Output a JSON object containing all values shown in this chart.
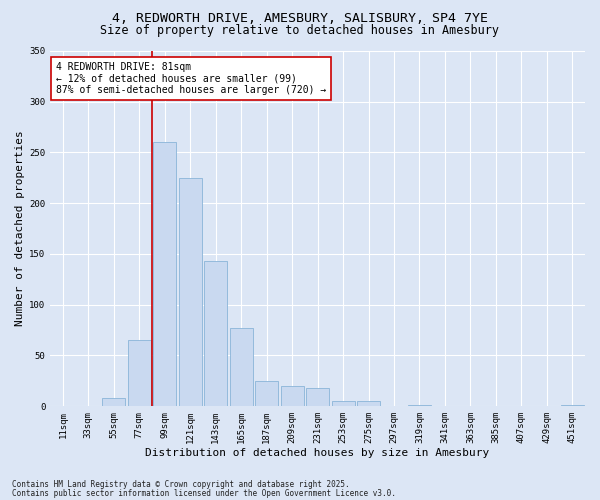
{
  "title_line1": "4, REDWORTH DRIVE, AMESBURY, SALISBURY, SP4 7YE",
  "title_line2": "Size of property relative to detached houses in Amesbury",
  "xlabel": "Distribution of detached houses by size in Amesbury",
  "ylabel": "Number of detached properties",
  "footnote1": "Contains HM Land Registry data © Crown copyright and database right 2025.",
  "footnote2": "Contains public sector information licensed under the Open Government Licence v3.0.",
  "bar_labels": [
    "11sqm",
    "33sqm",
    "55sqm",
    "77sqm",
    "99sqm",
    "121sqm",
    "143sqm",
    "165sqm",
    "187sqm",
    "209sqm",
    "231sqm",
    "253sqm",
    "275sqm",
    "297sqm",
    "319sqm",
    "341sqm",
    "363sqm",
    "385sqm",
    "407sqm",
    "429sqm",
    "451sqm"
  ],
  "bar_values": [
    0,
    0,
    8,
    65,
    260,
    225,
    143,
    77,
    25,
    20,
    18,
    5,
    5,
    0,
    1,
    0,
    0,
    0,
    0,
    0,
    1
  ],
  "bar_color": "#c9d9f0",
  "bar_edgecolor": "#8ab4d8",
  "vline_x_index": 4,
  "vline_color": "#cc0000",
  "annotation_text": "4 REDWORTH DRIVE: 81sqm\n← 12% of detached houses are smaller (99)\n87% of semi-detached houses are larger (720) →",
  "annotation_box_facecolor": "#ffffff",
  "annotation_box_edgecolor": "#cc0000",
  "ylim": [
    0,
    350
  ],
  "yticks": [
    0,
    50,
    100,
    150,
    200,
    250,
    300,
    350
  ],
  "bg_color": "#dce6f5",
  "axes_bg_color": "#dce6f5",
  "grid_color": "#ffffff",
  "title_fontsize": 9.5,
  "subtitle_fontsize": 8.5,
  "axis_label_fontsize": 8,
  "tick_fontsize": 6.5,
  "annotation_fontsize": 7,
  "footnote_fontsize": 5.5
}
